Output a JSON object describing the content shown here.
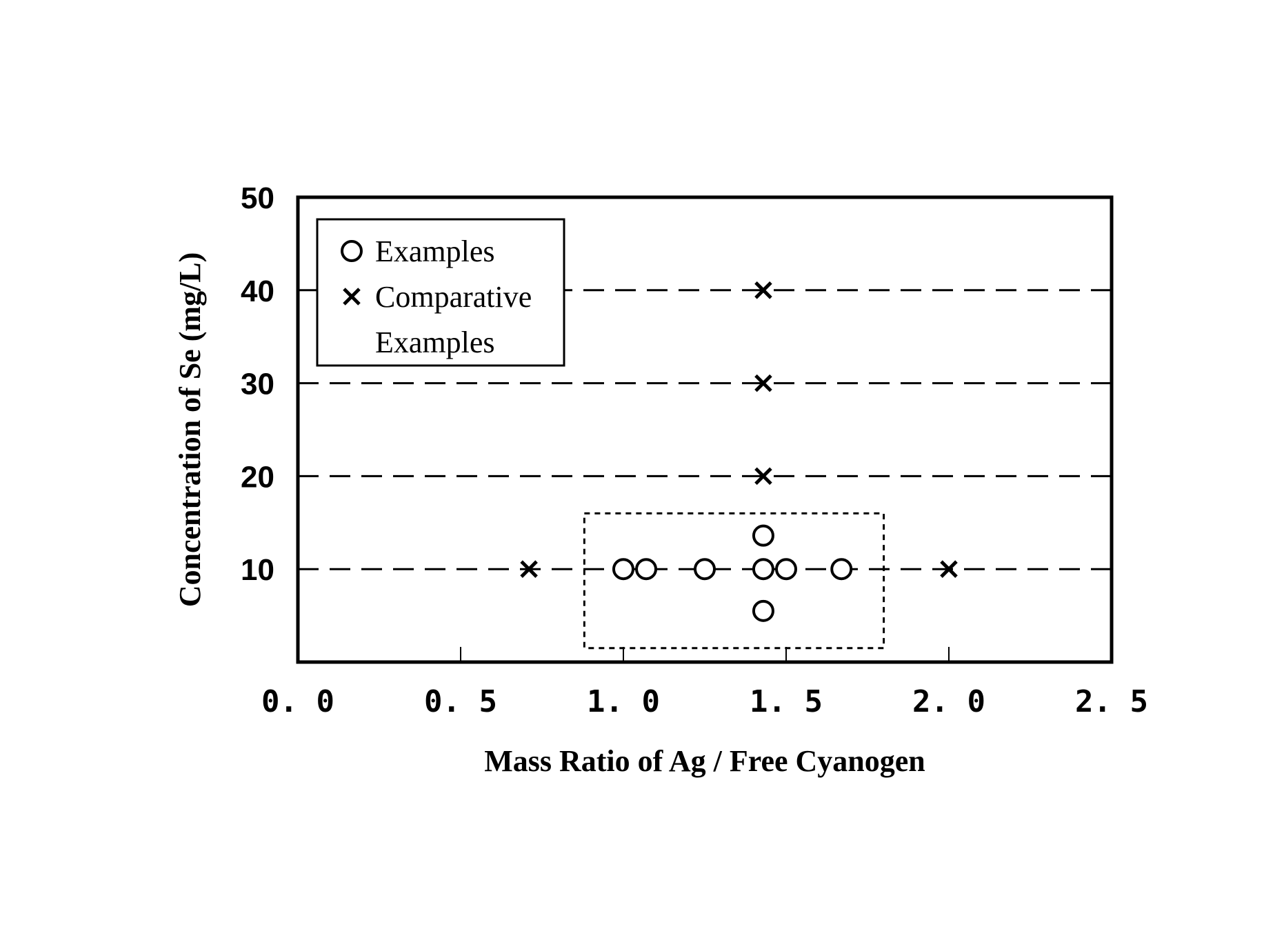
{
  "chart_data": {
    "type": "scatter",
    "xlabel": "Mass Ratio of Ag / Free Cyanogen",
    "ylabel": "Concentration of Se (mg/L)",
    "xlim": [
      0.0,
      2.5
    ],
    "ylim": [
      0,
      50
    ],
    "x_ticks": [
      0.0,
      0.5,
      1.0,
      1.5,
      2.0,
      2.5
    ],
    "x_tick_labels": [
      "0. 0",
      "0. 5",
      "1. 0",
      "1. 5",
      "2. 0",
      "2. 5"
    ],
    "y_ticks": [
      10,
      20,
      30,
      40,
      50
    ],
    "y_tick_labels": [
      "10",
      "20",
      "30",
      "40",
      "50"
    ],
    "reference_lines_y": [
      10,
      20,
      30,
      40
    ],
    "grid": "dashed horizontal lines at 10, 20, 30, 40",
    "legend_position": "top-left",
    "legend": [
      {
        "marker": "circle",
        "label_lines": [
          "Examples"
        ]
      },
      {
        "marker": "cross",
        "label_lines": [
          "Comparative",
          "Examples"
        ]
      }
    ],
    "highlight_box": {
      "x": [
        0.88,
        1.8
      ],
      "y": [
        1.5,
        16
      ],
      "style": "dashed"
    },
    "series": [
      {
        "name": "Examples",
        "marker": "circle",
        "points": [
          {
            "x": 1.0,
            "y": 10
          },
          {
            "x": 1.07,
            "y": 10
          },
          {
            "x": 1.25,
            "y": 10
          },
          {
            "x": 1.43,
            "y": 10
          },
          {
            "x": 1.5,
            "y": 10
          },
          {
            "x": 1.67,
            "y": 10
          },
          {
            "x": 1.43,
            "y": 13.6
          },
          {
            "x": 1.43,
            "y": 5.5
          }
        ]
      },
      {
        "name": "Comparative Examples",
        "marker": "cross",
        "points": [
          {
            "x": 0.71,
            "y": 10
          },
          {
            "x": 2.0,
            "y": 10
          },
          {
            "x": 1.43,
            "y": 20
          },
          {
            "x": 1.43,
            "y": 30
          },
          {
            "x": 1.43,
            "y": 40
          }
        ]
      }
    ]
  }
}
